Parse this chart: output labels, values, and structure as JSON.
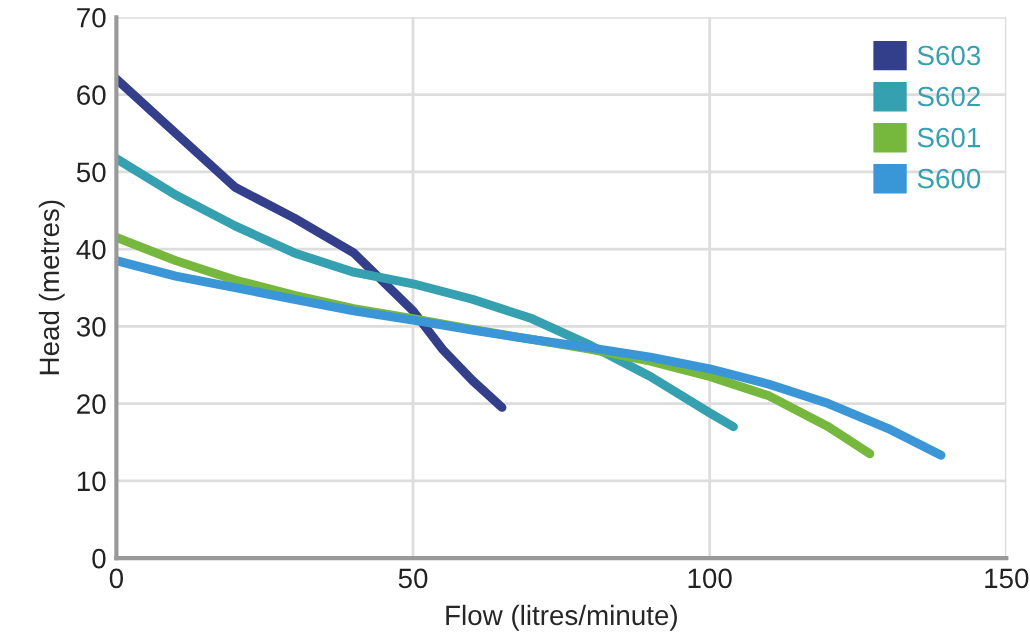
{
  "chart_data": {
    "type": "line",
    "xlabel": "Flow (litres/minute)",
    "ylabel": "Head (metres)",
    "xlim": [
      0,
      150
    ],
    "xticks": [
      0,
      50,
      100,
      150
    ],
    "ylim": [
      0,
      70
    ],
    "yticks": [
      0,
      10,
      20,
      30,
      40,
      50,
      60,
      70
    ],
    "grid": true,
    "legend": "top right",
    "marker": "none",
    "line_style": "solid",
    "series": [
      {
        "name": "S603",
        "color": "#343f8c",
        "x": [
          0,
          10,
          20,
          30,
          40,
          50,
          55,
          60,
          65
        ],
        "values": [
          62,
          55,
          48,
          44,
          39.5,
          32,
          27,
          23,
          19.5
        ]
      },
      {
        "name": "S602",
        "color": "#35a0b0",
        "x": [
          0,
          10,
          20,
          30,
          40,
          50,
          60,
          70,
          80,
          90,
          100,
          104
        ],
        "values": [
          51.7,
          47,
          43,
          39.5,
          37,
          35.5,
          33.5,
          31,
          27.5,
          23.5,
          18.8,
          17
        ]
      },
      {
        "name": "S601",
        "color": "#76b83e",
        "x": [
          0,
          10,
          20,
          30,
          40,
          50,
          60,
          70,
          80,
          90,
          100,
          110,
          120,
          127
        ],
        "values": [
          41.5,
          38.5,
          36,
          34,
          32.3,
          31,
          29.6,
          28.3,
          27,
          25.5,
          23.5,
          21,
          17,
          13.5
        ]
      },
      {
        "name": "S600",
        "color": "#3a96d6",
        "x": [
          0,
          10,
          20,
          30,
          40,
          50,
          60,
          70,
          80,
          90,
          100,
          110,
          120,
          130,
          139
        ],
        "values": [
          38.5,
          36.5,
          35,
          33.5,
          32,
          30.8,
          29.5,
          28.3,
          27.2,
          26,
          24.5,
          22.5,
          20,
          16.8,
          13.3
        ]
      }
    ]
  }
}
